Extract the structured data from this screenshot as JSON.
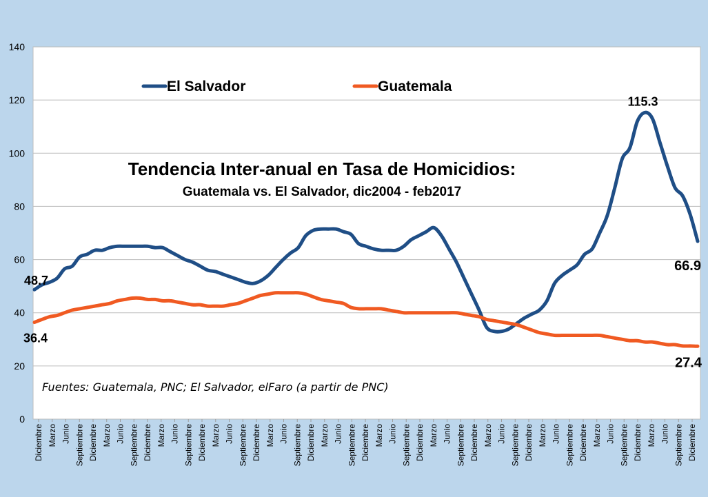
{
  "chart_data": {
    "type": "line",
    "title": "Tendencia Inter-anual en Tasa de Homicidios:",
    "subtitle": "Guatemala vs. El Salvador, dic2004 - feb2017",
    "source_note": "Fuentes: Guatemala, PNC; El Salvador, elFaro (a partir de PNC)",
    "ylim": [
      0,
      140
    ],
    "yticks": [
      0,
      20,
      40,
      60,
      80,
      100,
      120,
      140
    ],
    "grid": true,
    "legend_position": "top",
    "x_tick_labels": [
      "Diciembre",
      "Marzo",
      "Junio",
      "Septiembre",
      "Diciembre",
      "Marzo",
      "Junio",
      "Septiembre",
      "Diciembre",
      "Marzo",
      "Junio",
      "Septiembre",
      "Diciembre",
      "Marzo",
      "Junio",
      "Septiembre",
      "Diciembre",
      "Marzo",
      "Junio",
      "Septiembre",
      "Diciembre",
      "Marzo",
      "Junio",
      "Septiembre",
      "Diciembre",
      "Marzo",
      "Junio",
      "Septiembre",
      "Diciembre",
      "Marzo",
      "Junio",
      "Septiembre",
      "Diciembre",
      "Marzo",
      "Junio",
      "Septiembre",
      "Diciembre",
      "Marzo",
      "Junio",
      "Septiembre",
      "Diciembre",
      "Marzo",
      "Junio",
      "Septiembre",
      "Diciembre",
      "Marzo",
      "Junio",
      "Septiembre",
      "Diciembre"
    ],
    "series": [
      {
        "name": "El Salvador",
        "color": "#1f4e86",
        "points": [
          [
            0,
            48.7
          ],
          [
            1,
            50.5
          ],
          [
            2,
            51.5
          ],
          [
            3,
            53
          ],
          [
            4,
            56.5
          ],
          [
            5,
            57.5
          ],
          [
            6,
            61
          ],
          [
            7,
            62
          ],
          [
            8,
            63.5
          ],
          [
            9,
            63.5
          ],
          [
            10,
            64.5
          ],
          [
            11,
            65
          ],
          [
            12,
            65
          ],
          [
            13,
            65
          ],
          [
            14,
            65
          ],
          [
            15,
            65
          ],
          [
            16,
            64.5
          ],
          [
            17,
            64.5
          ],
          [
            18,
            63
          ],
          [
            19,
            61.5
          ],
          [
            20,
            60
          ],
          [
            21,
            59
          ],
          [
            22,
            57.5
          ],
          [
            23,
            56
          ],
          [
            24,
            55.5
          ],
          [
            25,
            54.5
          ],
          [
            26,
            53.5
          ],
          [
            27,
            52.5
          ],
          [
            28,
            51.5
          ],
          [
            29,
            51
          ],
          [
            30,
            52
          ],
          [
            31,
            54
          ],
          [
            32,
            57
          ],
          [
            33,
            60
          ],
          [
            34,
            62.5
          ],
          [
            35,
            64.5
          ],
          [
            36,
            69
          ],
          [
            37,
            71
          ],
          [
            38,
            71.5
          ],
          [
            39,
            71.5
          ],
          [
            40,
            71.5
          ],
          [
            41,
            70.5
          ],
          [
            42,
            69.5
          ],
          [
            43,
            66
          ],
          [
            44,
            65
          ],
          [
            45,
            64
          ],
          [
            46,
            63.5
          ],
          [
            47,
            63.5
          ],
          [
            48,
            63.5
          ],
          [
            49,
            65
          ],
          [
            50,
            67.5
          ],
          [
            51,
            69
          ],
          [
            52,
            70.5
          ],
          [
            53,
            72
          ],
          [
            54,
            69
          ],
          [
            55,
            64
          ],
          [
            56,
            59
          ],
          [
            57,
            53
          ],
          [
            58,
            47
          ],
          [
            59,
            41
          ],
          [
            60,
            34.5
          ],
          [
            61,
            33
          ],
          [
            62,
            33
          ],
          [
            63,
            34
          ],
          [
            64,
            36
          ],
          [
            65,
            38
          ],
          [
            66,
            39.5
          ],
          [
            67,
            41
          ],
          [
            68,
            44.5
          ],
          [
            69,
            51
          ],
          [
            70,
            54
          ],
          [
            71,
            56
          ],
          [
            72,
            58
          ],
          [
            73,
            62
          ],
          [
            74,
            64
          ],
          [
            75,
            70
          ],
          [
            76,
            76.5
          ],
          [
            77,
            87
          ],
          [
            78,
            98
          ],
          [
            79,
            102
          ],
          [
            80,
            112
          ],
          [
            81,
            115.3
          ],
          [
            82,
            113
          ],
          [
            83,
            104
          ],
          [
            84,
            95
          ],
          [
            85,
            87
          ],
          [
            86,
            84
          ],
          [
            87,
            77
          ],
          [
            88,
            66.9
          ]
        ]
      },
      {
        "name": "Guatemala",
        "color": "#f05a22",
        "points": [
          [
            0,
            36.4
          ],
          [
            1,
            37.5
          ],
          [
            2,
            38.5
          ],
          [
            3,
            39
          ],
          [
            4,
            40
          ],
          [
            5,
            41
          ],
          [
            6,
            41.5
          ],
          [
            7,
            42
          ],
          [
            8,
            42.5
          ],
          [
            9,
            43
          ],
          [
            10,
            43.5
          ],
          [
            11,
            44.5
          ],
          [
            12,
            45
          ],
          [
            13,
            45.5
          ],
          [
            14,
            45.5
          ],
          [
            15,
            45
          ],
          [
            16,
            45
          ],
          [
            17,
            44.5
          ],
          [
            18,
            44.5
          ],
          [
            19,
            44
          ],
          [
            20,
            43.5
          ],
          [
            21,
            43
          ],
          [
            22,
            43
          ],
          [
            23,
            42.5
          ],
          [
            24,
            42.5
          ],
          [
            25,
            42.5
          ],
          [
            26,
            43
          ],
          [
            27,
            43.5
          ],
          [
            28,
            44.5
          ],
          [
            29,
            45.5
          ],
          [
            30,
            46.5
          ],
          [
            31,
            47
          ],
          [
            32,
            47.5
          ],
          [
            33,
            47.5
          ],
          [
            34,
            47.5
          ],
          [
            35,
            47.5
          ],
          [
            36,
            47
          ],
          [
            37,
            46
          ],
          [
            38,
            45
          ],
          [
            39,
            44.5
          ],
          [
            40,
            44
          ],
          [
            41,
            43.5
          ],
          [
            42,
            42
          ],
          [
            43,
            41.5
          ],
          [
            44,
            41.5
          ],
          [
            45,
            41.5
          ],
          [
            46,
            41.5
          ],
          [
            47,
            41
          ],
          [
            48,
            40.5
          ],
          [
            49,
            40
          ],
          [
            50,
            40
          ],
          [
            51,
            40
          ],
          [
            52,
            40
          ],
          [
            53,
            40
          ],
          [
            54,
            40
          ],
          [
            55,
            40
          ],
          [
            56,
            40
          ],
          [
            57,
            39.5
          ],
          [
            58,
            39
          ],
          [
            59,
            38.5
          ],
          [
            60,
            37.5
          ],
          [
            61,
            37
          ],
          [
            62,
            36.5
          ],
          [
            63,
            36
          ],
          [
            64,
            35.5
          ],
          [
            65,
            34.5
          ],
          [
            66,
            33.5
          ],
          [
            67,
            32.5
          ],
          [
            68,
            32
          ],
          [
            69,
            31.5
          ],
          [
            70,
            31.5
          ],
          [
            71,
            31.5
          ],
          [
            72,
            31.5
          ],
          [
            73,
            31.5
          ],
          [
            74,
            31.5
          ],
          [
            75,
            31.5
          ],
          [
            76,
            31
          ],
          [
            77,
            30.5
          ],
          [
            78,
            30
          ],
          [
            79,
            29.5
          ],
          [
            80,
            29.5
          ],
          [
            81,
            29
          ],
          [
            82,
            29
          ],
          [
            83,
            28.5
          ],
          [
            84,
            28
          ],
          [
            85,
            28
          ],
          [
            86,
            27.5
          ],
          [
            87,
            27.5
          ],
          [
            88,
            27.4
          ]
        ]
      }
    ],
    "data_labels": [
      {
        "series": "El Salvador",
        "index": 0,
        "text": "48.7"
      },
      {
        "series": "El Salvador",
        "index": 81,
        "text": "115.3"
      },
      {
        "series": "El Salvador",
        "index": 88,
        "text": "66.9"
      },
      {
        "series": "Guatemala",
        "index": 0,
        "text": "36.4"
      },
      {
        "series": "Guatemala",
        "index": 88,
        "text": "27.4"
      }
    ]
  }
}
